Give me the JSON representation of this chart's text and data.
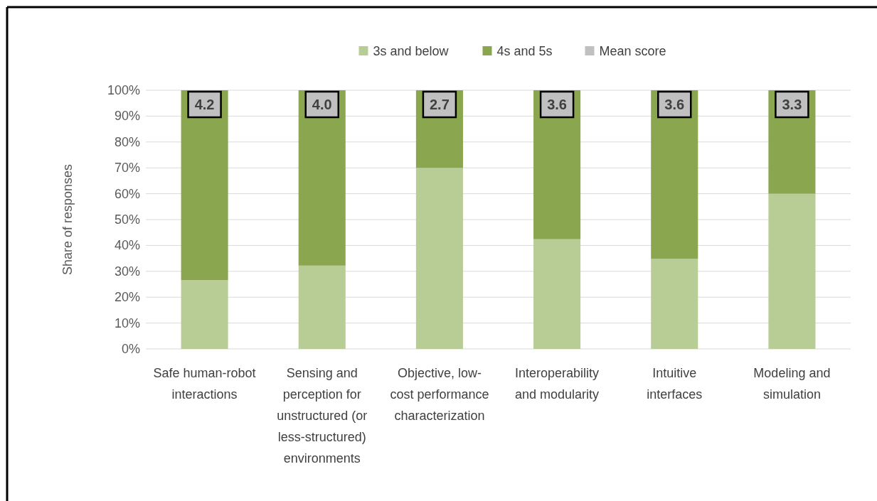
{
  "chart_data": {
    "type": "bar",
    "stacked": true,
    "ylabel": "Share of responses",
    "categories": [
      "Safe human-robot interactions",
      "Sensing and perception for unstructured (or less-structured) environments",
      "Objective, low-cost performance characterization",
      "Interoperability and modularity",
      "Intuitive interfaces",
      "Modeling and simulation"
    ],
    "series": [
      {
        "name": "3s and below",
        "color": "#b8cd95",
        "values": [
          26.6,
          32.2,
          70,
          42.4,
          34.8,
          60
        ]
      },
      {
        "name": "4s and 5s",
        "color": "#8aa64e",
        "values": [
          73.4,
          67.8,
          30,
          57.6,
          65.2,
          40
        ]
      },
      {
        "name": "Mean score",
        "color": "#c0c0c0",
        "values": [
          null,
          null,
          null,
          null,
          null,
          null
        ]
      }
    ],
    "annotations": [
      {
        "text": "4.2",
        "x": "Safe human-robot interactions",
        "y": 100
      },
      {
        "text": "4.0",
        "x": "Sensing and perception for unstructured (or less-structured) environments",
        "y": 100
      },
      {
        "text": "2.7",
        "x": "Objective, low-cost performance characterization",
        "y": 100
      },
      {
        "text": "3.6",
        "x": "Interoperability and modularity",
        "y": 100
      },
      {
        "text": "3.6",
        "x": "Intuitive interfaces",
        "y": 100
      },
      {
        "text": "3.3",
        "x": "Modeling and simulation",
        "y": 100
      }
    ],
    "ylim": [
      0,
      100
    ],
    "yticks": [
      {
        "value": 0,
        "label": "0%"
      },
      {
        "value": 10,
        "label": "10%"
      },
      {
        "value": 20,
        "label": "20%"
      },
      {
        "value": 30,
        "label": "30%"
      },
      {
        "value": 40,
        "label": "40%"
      },
      {
        "value": 50,
        "label": "50%"
      },
      {
        "value": 60,
        "label": "60%"
      },
      {
        "value": 70,
        "label": "70%"
      },
      {
        "value": 80,
        "label": "80%"
      },
      {
        "value": 90,
        "label": "90%"
      },
      {
        "value": 100,
        "label": "100%"
      }
    ],
    "grid": "y",
    "legend": "top"
  }
}
